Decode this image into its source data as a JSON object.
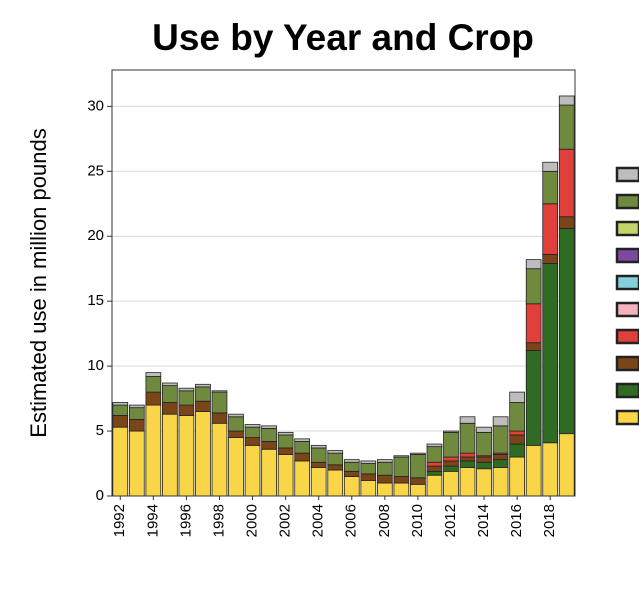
{
  "chart_data": {
    "type": "stacked-bar",
    "title": "Use by Year and Crop",
    "y_label": "Estimated use in million pounds",
    "categories": [
      "1992",
      null,
      "1994",
      null,
      "1996",
      null,
      "1998",
      null,
      "2000",
      null,
      "2002",
      null,
      "2004",
      null,
      "2006",
      null,
      "2008",
      null,
      "2010",
      null,
      "2012",
      null,
      "2014",
      null,
      "2016",
      null,
      "2018",
      null
    ],
    "ylim": [
      0,
      32.8
    ],
    "yticks": [
      0,
      5,
      10,
      15,
      20,
      25,
      30
    ],
    "grid": true,
    "series": [
      {
        "color": "#f9d648",
        "values": [
          5.3,
          5.0,
          7.0,
          6.3,
          6.2,
          6.5,
          5.6,
          4.5,
          3.9,
          3.6,
          3.2,
          2.7,
          2.2,
          2.0,
          1.5,
          1.2,
          1.0,
          1.0,
          0.9,
          1.6,
          1.9,
          2.2,
          2.1,
          2.2,
          3.0,
          3.9,
          4.1,
          4.8
        ]
      },
      {
        "color": "#2f6b22",
        "values": [
          0,
          0,
          0,
          0,
          0,
          0,
          0,
          0,
          0,
          0,
          0,
          0,
          0,
          0,
          0,
          0,
          0,
          0,
          0,
          0.3,
          0.4,
          0.5,
          0.5,
          0.6,
          1.0,
          7.3,
          13.8,
          15.8
        ]
      },
      {
        "color": "#7a4518",
        "values": [
          0.9,
          0.9,
          1.0,
          0.9,
          0.8,
          0.8,
          0.8,
          0.5,
          0.6,
          0.6,
          0.5,
          0.6,
          0.4,
          0.4,
          0.4,
          0.5,
          0.6,
          0.5,
          0.5,
          0.4,
          0.4,
          0.3,
          0.4,
          0.4,
          0.7,
          0.6,
          0.7,
          0.9
        ]
      },
      {
        "color": "#e0403a",
        "values": [
          0,
          0,
          0,
          0,
          0,
          0,
          0,
          0,
          0,
          0,
          0,
          0,
          0,
          0,
          0,
          0,
          0,
          0,
          0,
          0.3,
          0.3,
          0.3,
          0.1,
          0.1,
          0.3,
          3.0,
          3.9,
          5.2
        ]
      },
      {
        "color": "#f2b3bd",
        "values": [
          0,
          0,
          0,
          0,
          0,
          0,
          0,
          0,
          0,
          0,
          0,
          0,
          0,
          0,
          0,
          0,
          0,
          0,
          0,
          0,
          0,
          0,
          0,
          0,
          0,
          0,
          0,
          0
        ]
      },
      {
        "color": "#86cfdc",
        "values": [
          0,
          0,
          0,
          0,
          0,
          0,
          0,
          0,
          0,
          0,
          0,
          0,
          0,
          0,
          0,
          0,
          0,
          0,
          0,
          0,
          0,
          0,
          0,
          0,
          0,
          0,
          0,
          0
        ]
      },
      {
        "color": "#7b4aa0",
        "values": [
          0,
          0,
          0,
          0,
          0,
          0,
          0,
          0,
          0,
          0,
          0,
          0,
          0,
          0,
          0,
          0,
          0,
          0,
          0,
          0,
          0,
          0,
          0,
          0,
          0,
          0,
          0,
          0
        ]
      },
      {
        "color": "#c3d56a",
        "values": [
          0,
          0,
          0,
          0,
          0,
          0,
          0,
          0,
          0,
          0,
          0,
          0,
          0,
          0,
          0,
          0,
          0,
          0,
          0,
          0,
          0,
          0,
          0,
          0,
          0,
          0,
          0,
          0
        ]
      },
      {
        "color": "#6f8a3f",
        "values": [
          0.8,
          0.9,
          1.2,
          1.3,
          1.1,
          1.1,
          1.6,
          1.1,
          0.8,
          1.0,
          1.0,
          0.9,
          1.1,
          0.9,
          0.7,
          0.8,
          1.0,
          1.5,
          1.8,
          1.2,
          1.9,
          2.3,
          1.8,
          2.1,
          2.2,
          2.7,
          2.5,
          3.4
        ]
      },
      {
        "color": "#bdbdbd",
        "values": [
          0.2,
          0.2,
          0.3,
          0.2,
          0.2,
          0.2,
          0.1,
          0.2,
          0.2,
          0.2,
          0.2,
          0.2,
          0.2,
          0.2,
          0.2,
          0.2,
          0.2,
          0.1,
          0.1,
          0.2,
          0.1,
          0.5,
          0.4,
          0.7,
          0.8,
          0.7,
          0.7,
          0.7
        ]
      }
    ]
  }
}
